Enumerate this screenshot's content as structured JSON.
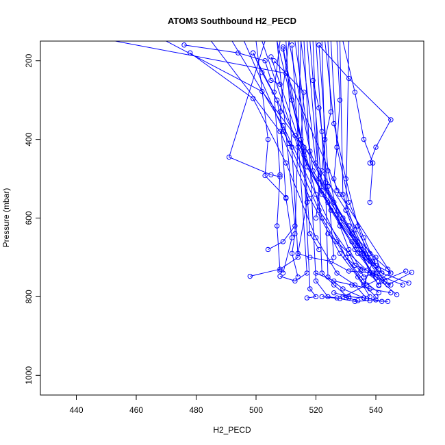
{
  "chart_data": {
    "type": "scatter",
    "title": "ATOM3 Southbound H2_PECD",
    "xlabel": "H2_PECD",
    "ylabel": "Pressure (mbar)",
    "xlim": [
      428,
      556
    ],
    "ylim": [
      1050,
      150
    ],
    "y_reversed": true,
    "x_ticks": [
      440,
      460,
      480,
      500,
      520,
      540
    ],
    "y_ticks": [
      200,
      400,
      600,
      800,
      1000
    ],
    "grid": false,
    "legend": "none",
    "color": "#0000ff",
    "series": [
      {
        "points": [
          [
            453,
            150
          ],
          [
            510,
            232
          ],
          [
            528,
            540
          ],
          [
            545,
            740
          ],
          [
            537,
            770
          ],
          [
            529,
            800
          ],
          [
            534,
            810
          ]
        ]
      },
      {
        "points": [
          [
            470,
            150
          ],
          [
            502,
            278
          ],
          [
            516,
            420
          ],
          [
            522,
            600
          ],
          [
            530,
            700
          ],
          [
            536,
            770
          ],
          [
            540,
            800
          ]
        ]
      },
      {
        "points": [
          [
            478,
            180
          ],
          [
            499,
            296
          ],
          [
            510,
            460
          ],
          [
            520,
            650
          ],
          [
            527,
            740
          ],
          [
            533,
            770
          ],
          [
            537,
            805
          ]
        ]
      },
      {
        "points": [
          [
            485,
            150
          ],
          [
            508,
            380
          ],
          [
            518,
            550
          ],
          [
            528,
            690
          ],
          [
            534,
            750
          ],
          [
            538,
            800
          ]
        ]
      },
      {
        "points": [
          [
            492,
            150
          ],
          [
            509,
            365
          ],
          [
            520,
            540
          ],
          [
            530,
            700
          ],
          [
            536,
            760
          ],
          [
            541,
            790
          ]
        ]
      },
      {
        "points": [
          [
            496,
            150
          ],
          [
            511,
            410
          ],
          [
            521,
            580
          ],
          [
            531,
            690
          ],
          [
            538,
            740
          ],
          [
            541,
            770
          ]
        ]
      },
      {
        "points": [
          [
            499,
            180
          ],
          [
            513,
            390
          ],
          [
            522,
            540
          ],
          [
            532,
            660
          ],
          [
            539,
            740
          ],
          [
            549,
            770
          ]
        ]
      },
      {
        "points": [
          [
            502,
            150
          ],
          [
            514,
            420
          ],
          [
            524,
            560
          ],
          [
            533,
            680
          ],
          [
            540,
            750
          ],
          [
            547,
            795
          ]
        ]
      },
      {
        "points": [
          [
            505,
            190
          ],
          [
            516,
            440
          ],
          [
            525,
            580
          ],
          [
            534,
            690
          ],
          [
            542,
            740
          ],
          [
            551,
            765
          ]
        ]
      },
      {
        "points": [
          [
            507,
            150
          ],
          [
            515,
            400
          ],
          [
            526,
            560
          ],
          [
            535,
            680
          ],
          [
            542,
            760
          ],
          [
            550,
            735
          ]
        ]
      },
      {
        "points": [
          [
            509,
            165
          ],
          [
            517,
            470
          ],
          [
            528,
            610
          ],
          [
            536,
            690
          ],
          [
            544,
            770
          ],
          [
            552,
            738
          ]
        ]
      },
      {
        "points": [
          [
            511,
            150
          ],
          [
            518,
            430
          ],
          [
            527,
            590
          ],
          [
            534,
            670
          ],
          [
            540,
            720
          ],
          [
            545,
            740
          ]
        ]
      },
      {
        "points": [
          [
            513,
            150
          ],
          [
            519,
            480
          ],
          [
            529,
            600
          ],
          [
            537,
            700
          ],
          [
            543,
            760
          ]
        ]
      },
      {
        "points": [
          [
            515,
            150
          ],
          [
            520,
            460
          ],
          [
            530,
            580
          ],
          [
            538,
            690
          ],
          [
            544,
            730
          ]
        ]
      },
      {
        "points": [
          [
            517,
            150
          ],
          [
            521,
            500
          ],
          [
            531,
            620
          ],
          [
            539,
            710
          ],
          [
            536,
            770
          ]
        ]
      },
      {
        "points": [
          [
            518,
            150
          ],
          [
            522,
            530
          ],
          [
            532,
            640
          ],
          [
            540,
            700
          ],
          [
            542,
            740
          ]
        ]
      },
      {
        "points": [
          [
            520,
            150
          ],
          [
            523,
            510
          ],
          [
            533,
            660
          ],
          [
            539,
            745
          ],
          [
            541,
            772
          ]
        ]
      },
      {
        "points": [
          [
            521,
            160
          ],
          [
            524,
            480
          ],
          [
            528,
            620
          ],
          [
            531,
            680
          ],
          [
            535,
            730
          ]
        ]
      },
      {
        "points": [
          [
            523,
            150
          ],
          [
            526,
            360
          ],
          [
            530,
            500
          ],
          [
            534,
            620
          ],
          [
            538,
            710
          ]
        ]
      },
      {
        "points": [
          [
            525,
            150
          ],
          [
            527,
            420
          ],
          [
            531,
            560
          ],
          [
            536,
            650
          ],
          [
            540,
            720
          ]
        ]
      },
      {
        "points": [
          [
            528,
            150
          ],
          [
            529,
            540
          ],
          [
            533,
            630
          ],
          [
            537,
            700
          ],
          [
            541,
            730
          ]
        ]
      },
      {
        "points": [
          [
            531,
            150
          ],
          [
            530,
            580
          ],
          [
            534,
            660
          ],
          [
            538,
            740
          ],
          [
            545,
            770
          ]
        ]
      },
      {
        "points": [
          [
            507,
            150
          ],
          [
            513,
            620
          ],
          [
            509,
            660
          ],
          [
            504,
            680
          ]
        ]
      },
      {
        "points": [
          [
            510,
            150
          ],
          [
            514,
            700
          ],
          [
            508,
            730
          ],
          [
            498,
            748
          ]
        ]
      },
      {
        "points": [
          [
            512,
            160
          ],
          [
            517,
            740
          ],
          [
            513,
            760
          ],
          [
            508,
            748
          ]
        ]
      },
      {
        "points": [
          [
            514,
            150
          ],
          [
            518,
            780
          ],
          [
            520,
            800
          ],
          [
            517,
            803
          ]
        ]
      },
      {
        "points": [
          [
            516,
            150
          ],
          [
            520,
            760
          ],
          [
            524,
            800
          ],
          [
            527,
            803
          ]
        ]
      },
      {
        "points": [
          [
            519,
            150
          ],
          [
            522,
            740
          ],
          [
            526,
            770
          ],
          [
            531,
            803
          ]
        ]
      },
      {
        "points": [
          [
            522,
            150
          ],
          [
            524,
            750
          ],
          [
            529,
            780
          ],
          [
            536,
            803
          ]
        ]
      },
      {
        "points": [
          [
            515,
            150
          ],
          [
            513,
            640
          ],
          [
            512,
            690
          ],
          [
            514,
            750
          ]
        ]
      },
      {
        "points": [
          [
            511,
            150
          ],
          [
            508,
            330
          ],
          [
            510,
            550
          ],
          [
            512,
            650
          ],
          [
            509,
            740
          ]
        ]
      },
      {
        "points": [
          [
            508,
            150
          ],
          [
            506,
            280
          ],
          [
            508,
            490
          ],
          [
            507,
            620
          ],
          [
            508,
            735
          ]
        ]
      },
      {
        "points": [
          [
            503,
            150
          ],
          [
            491,
            445
          ],
          [
            505,
            490
          ],
          [
            508,
            495
          ]
        ]
      },
      {
        "points": [
          [
            500,
            150
          ],
          [
            504,
            400
          ],
          [
            503,
            492
          ],
          [
            510,
            548
          ]
        ]
      },
      {
        "points": [
          [
            506,
            200
          ],
          [
            516,
            280
          ],
          [
            515,
            400
          ],
          [
            517,
            560
          ],
          [
            514,
            690
          ]
        ]
      },
      {
        "points": [
          [
            509,
            170
          ],
          [
            512,
            300
          ],
          [
            516,
            430
          ],
          [
            518,
            640
          ],
          [
            521,
            680
          ]
        ]
      },
      {
        "points": [
          [
            519,
            250
          ],
          [
            521,
            320
          ],
          [
            522,
            380
          ],
          [
            524,
            520
          ],
          [
            526,
            700
          ]
        ]
      },
      {
        "points": [
          [
            524,
            150
          ],
          [
            525,
            330
          ],
          [
            523,
            400
          ],
          [
            522,
            480
          ],
          [
            520,
            600
          ]
        ]
      },
      {
        "points": [
          [
            527,
            150
          ],
          [
            528,
            300
          ],
          [
            527,
            420
          ],
          [
            526,
            500
          ],
          [
            527,
            530
          ]
        ]
      },
      {
        "points": [
          [
            521,
            160
          ],
          [
            531,
            245
          ],
          [
            545,
            350
          ],
          [
            540,
            420
          ],
          [
            538,
            460
          ]
        ]
      },
      {
        "points": [
          [
            529,
            150
          ],
          [
            533,
            280
          ],
          [
            536,
            400
          ],
          [
            539,
            460
          ],
          [
            538,
            560
          ]
        ]
      },
      {
        "points": [
          [
            499,
            180
          ],
          [
            502,
            230
          ],
          [
            507,
            300
          ],
          [
            509,
            380
          ],
          [
            512,
            420
          ]
        ]
      },
      {
        "points": [
          [
            476,
            160
          ],
          [
            494,
            180
          ],
          [
            503,
            200
          ],
          [
            505,
            250
          ],
          [
            508,
            260
          ]
        ]
      },
      {
        "points": [
          [
            514,
            690
          ],
          [
            518,
            700
          ],
          [
            525,
            710
          ],
          [
            531,
            735
          ],
          [
            540,
            740
          ]
        ]
      },
      {
        "points": [
          [
            520,
            740
          ],
          [
            526,
            760
          ],
          [
            532,
            770
          ],
          [
            538,
            780
          ],
          [
            545,
            790
          ]
        ]
      },
      {
        "points": [
          [
            522,
            800
          ],
          [
            528,
            805
          ],
          [
            533,
            812
          ],
          [
            538,
            810
          ],
          [
            544,
            812
          ]
        ]
      },
      {
        "points": [
          [
            526,
            790
          ],
          [
            531,
            800
          ],
          [
            536,
            803
          ],
          [
            540,
            808
          ],
          [
            542,
            812
          ]
        ]
      },
      {
        "points": [
          [
            530,
            700
          ],
          [
            533,
            720
          ],
          [
            535,
            735
          ],
          [
            536,
            750
          ],
          [
            539,
            740
          ]
        ]
      },
      {
        "points": [
          [
            524,
            640
          ],
          [
            527,
            660
          ],
          [
            531,
            690
          ],
          [
            533,
            720
          ],
          [
            537,
            733
          ]
        ]
      }
    ]
  }
}
